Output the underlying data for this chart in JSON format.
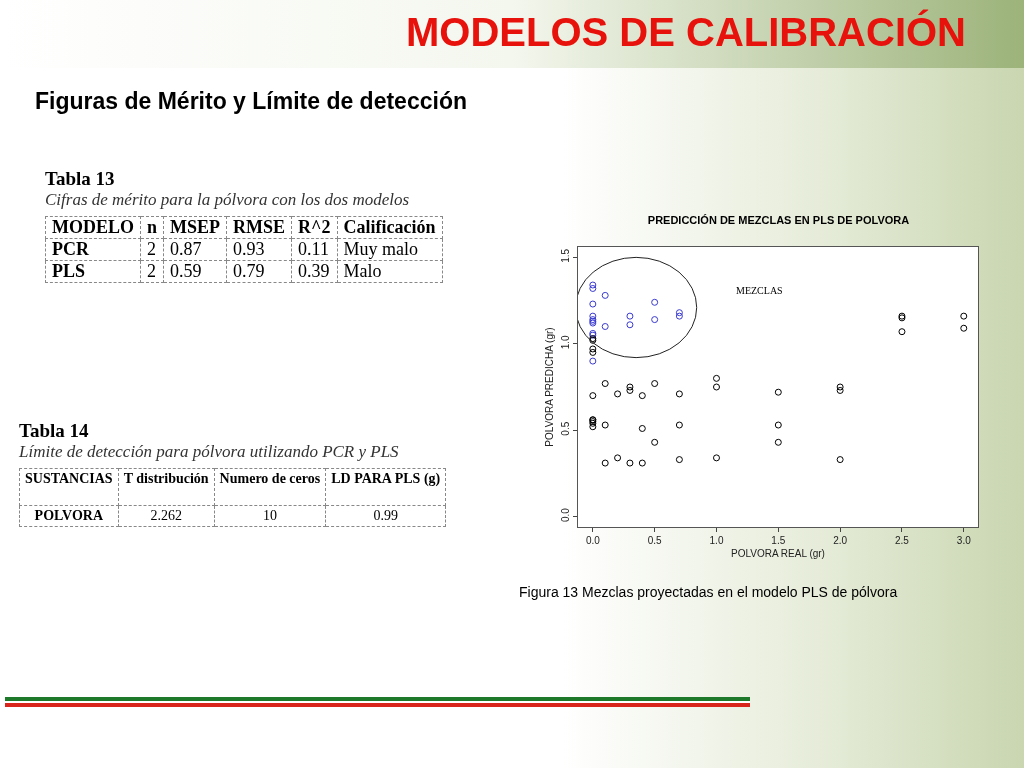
{
  "chart_data": [
    {
      "type": "other",
      "title": "MODELOS DE CALIBRACIÓN",
      "subtitle": "Figuras de Mérito y Límite de detección"
    },
    {
      "type": "other",
      "title": "Tabla 13",
      "subtitle": "Cifras de mérito para la pólvora con los dos modelos",
      "categories": [
        "MODELO",
        "n",
        "MSEP",
        "RMSE",
        "R^2",
        "Calificación"
      ],
      "cell_labels": [
        [
          "PCR",
          "2",
          "0.87",
          "0.93",
          "0.11",
          "Muy malo"
        ],
        [
          "PLS",
          "2",
          "0.59",
          "0.79",
          "0.39",
          "Malo"
        ]
      ]
    },
    {
      "type": "other",
      "title": "Tabla 14",
      "subtitle": "Límite de detección para pólvora utilizando PCR y PLS",
      "categories": [
        "SUSTANCIAS",
        "T distribución",
        "Numero de ceros",
        "LD PARA PLS (g)"
      ],
      "cell_labels": [
        [
          "POLVORA",
          "2.262",
          "10",
          "0.99"
        ]
      ]
    },
    {
      "type": "scatter",
      "title": "PREDICCIÓN DE MEZCLAS EN PLS DE POLVORA",
      "xlabel": "POLVORA REAL (gr)",
      "ylabel": "POLVORA PREDICHA (gr)",
      "marker": "circle",
      "xlim": [
        -0.12,
        3.115
      ],
      "ylim": [
        -0.06,
        1.56
      ],
      "xticks": [
        {
          "value": 0,
          "label": "0.0"
        },
        {
          "value": 0.5,
          "label": "0.5"
        },
        {
          "value": 1,
          "label": "1.0"
        },
        {
          "value": 1.5,
          "label": "1.5"
        },
        {
          "value": 2,
          "label": "2.0"
        },
        {
          "value": 2.5,
          "label": "2.5"
        },
        {
          "value": 3,
          "label": "3.0"
        }
      ],
      "yticks": [
        {
          "value": 0,
          "label": "0.0"
        },
        {
          "value": 0.5,
          "label": "0.5"
        },
        {
          "value": 1,
          "label": "1.0"
        },
        {
          "value": 1.5,
          "label": "1.5"
        }
      ],
      "series": [
        {
          "color": "#3a3ad0",
          "x": [
            0,
            0,
            0,
            0,
            0,
            0,
            0,
            0,
            0,
            0,
            0.1,
            0.1,
            0.3,
            0.3,
            0.5,
            0.5,
            0.7,
            0.7
          ],
          "values": [
            1.34,
            1.32,
            1.23,
            1.16,
            1.14,
            1.13,
            1.12,
            1.06,
            1.05,
            0.9,
            1.28,
            1.1,
            1.16,
            1.11,
            1.24,
            1.14,
            1.18,
            1.16
          ]
        },
        {
          "color": "#000000",
          "x": [
            0,
            0,
            0,
            0,
            0,
            0,
            0,
            0,
            0,
            0,
            0.1,
            0.1,
            0.1,
            0.2,
            0.2,
            0.3,
            0.3,
            0.3,
            0.4,
            0.4,
            0.4,
            0.5,
            0.5,
            0.7,
            0.7,
            0.7,
            1,
            1,
            1,
            1.5,
            1.5,
            1.5,
            2,
            2,
            2,
            2.5,
            2.5,
            2.5,
            3,
            3
          ],
          "values": [
            1.03,
            1.02,
            0.97,
            0.95,
            0.7,
            0.56,
            0.56,
            0.55,
            0.54,
            0.52,
            0.77,
            0.53,
            0.31,
            0.71,
            0.34,
            0.75,
            0.73,
            0.31,
            0.7,
            0.51,
            0.31,
            0.77,
            0.43,
            0.71,
            0.53,
            0.33,
            0.8,
            0.75,
            0.34,
            0.72,
            0.53,
            0.43,
            0.75,
            0.73,
            0.33,
            1.16,
            1.15,
            1.07,
            1.16,
            1.09
          ]
        }
      ],
      "annotations": [
        "MEZCLAS",
        "Figura 13 Mezclas proyectadas en el modelo PLS de pólvora"
      ]
    }
  ]
}
